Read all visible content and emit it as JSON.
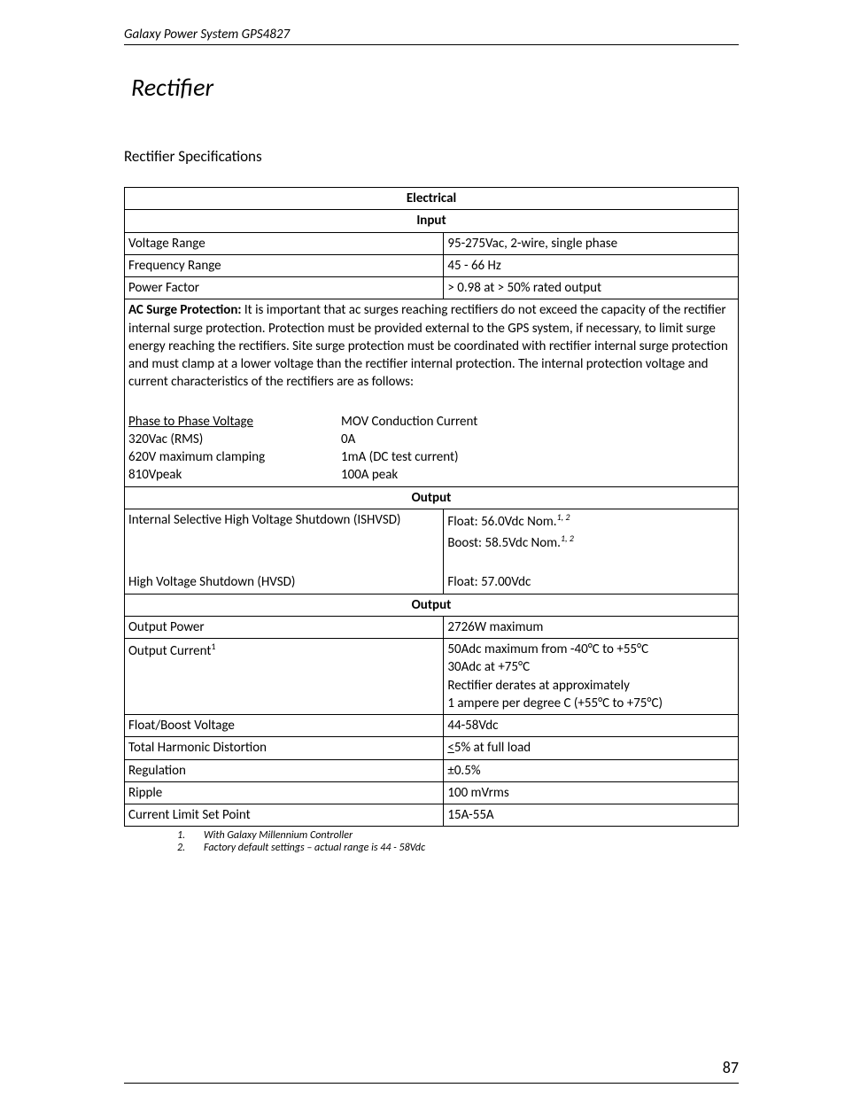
{
  "header": "Galaxy Power System GPS4827",
  "section_title": "Rectifier",
  "subsection_title": "Rectifier Specifications",
  "table": {
    "electrical_header": "Electrical",
    "input_header": "Input",
    "input_rows": [
      {
        "label": "Voltage Range",
        "value": "95-275Vac, 2-wire, single phase"
      },
      {
        "label": "Frequency Range",
        "value": "45 - 66 Hz"
      },
      {
        "label": "Power Factor",
        "value": "> 0.98 at > 50% rated output"
      }
    ],
    "surge": {
      "bold_lead": "AC Surge Protection:",
      "text": " It is important that ac surges reaching rectifiers do not exceed the capacity of the rectifier internal surge protection. Protection must be provided external to the GPS system, if necessary, to limit surge energy reaching the rectifiers. Site surge protection must be coordinated with rectifier internal surge protection and must clamp at a lower voltage than the rectifier internal protection. The internal protection voltage and current characteristics of the rectifiers are as follows:",
      "col1_header": "Phase to Phase Voltage",
      "col2_header": "MOV Conduction Current",
      "rows": [
        {
          "c1": "320Vac (RMS)",
          "c2": "0A"
        },
        {
          "c1": "620V maximum clamping",
          "c2": "1mA (DC test current)"
        },
        {
          "c1": "810Vpeak",
          "c2": "100A peak"
        }
      ]
    },
    "output_header_1": "Output",
    "ishvsd": {
      "label": "Internal Selective High Voltage Shutdown (ISHVSD)",
      "val1": "Float: 56.0Vdc Nom.",
      "val1_sup": "1, 2",
      "val2": "Boost: 58.5Vdc Nom.",
      "val2_sup": "1, 2"
    },
    "hvsd": {
      "label": "High Voltage Shutdown (HVSD)",
      "value": "Float: 57.00Vdc"
    },
    "output_header_2": "Output",
    "output_rows_2": [
      {
        "label": "Output Power",
        "value": "2726W maximum"
      }
    ],
    "output_current": {
      "label": "Output Current",
      "label_sup": "1",
      "lines": [
        "50Adc maximum from -40°C to +55°C",
        "30Adc at +75°C",
        "Rectifier derates at approximately",
        "1 ampere per degree C (+55°C to +75°C)"
      ]
    },
    "output_rows_3": [
      {
        "label": "Float/Boost Voltage",
        "value": "44-58Vdc"
      },
      {
        "label": "Total Harmonic Distortion",
        "value_html": "<span style='text-decoration:underline'>&lt;</span>5% at full load"
      },
      {
        "label": "Regulation",
        "value": "±0.5%"
      },
      {
        "label": "Ripple",
        "value": "100 mVrms"
      },
      {
        "label": "Current Limit Set Point",
        "value": "15A-55A"
      }
    ]
  },
  "footnotes": [
    {
      "num": "1.",
      "text": "With Galaxy Millennium Controller"
    },
    {
      "num": "2.",
      "text": "Factory default settings – actual range is 44 - 58Vdc"
    }
  ],
  "page_number": "87"
}
